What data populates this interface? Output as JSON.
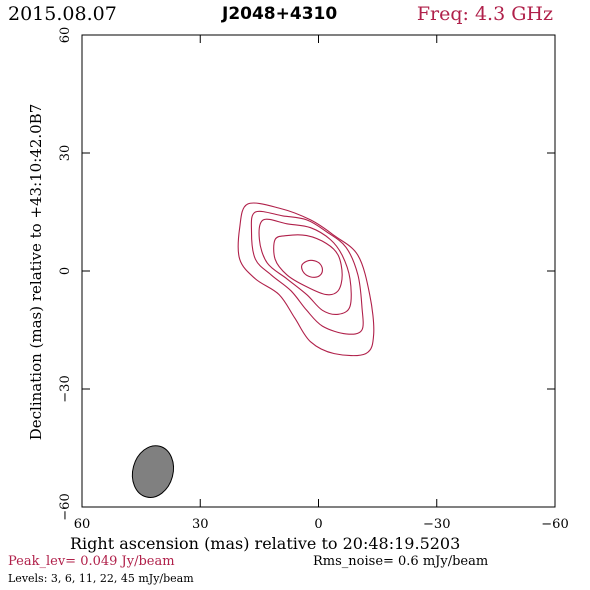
{
  "header": {
    "date": "2015.08.07",
    "source": "J2048+4310",
    "freq_label": "Freq: 4.3 GHz"
  },
  "footer": {
    "peak": "Peak_lev= 0.049 Jy/beam",
    "rms": "Rms_noise= 0.6 mJy/beam",
    "levels": "Levels: 3, 6, 11, 22, 45 mJy/beam"
  },
  "colors": {
    "contour": "#b0204a",
    "beam": "#808080",
    "axes": "#000000"
  },
  "chart_data": {
    "type": "contour",
    "xlabel": "Right ascension (mas) relative to 20:48:19.5203",
    "ylabel": "Declination (mas) relative to +43:10:42.0B7",
    "xlim": [
      60,
      -60
    ],
    "ylim": [
      -60,
      60
    ],
    "xticks": [
      60,
      30,
      0,
      -30,
      -60
    ],
    "yticks": [
      -60,
      -30,
      0,
      30,
      60
    ],
    "xtick_labels": [
      "60",
      "30",
      "0",
      "−30",
      "−60"
    ],
    "ytick_labels": [
      "−60",
      "−30",
      "0",
      "30",
      "60"
    ],
    "levels_mJy": [
      3,
      6,
      11,
      22,
      45
    ],
    "beam": {
      "x": 42,
      "y": -51,
      "major": 13.3,
      "minor": 10.2,
      "pa_deg": 15
    },
    "contours": [
      {
        "level": 3,
        "points": [
          [
            10,
            16
          ],
          [
            18,
            17
          ],
          [
            20,
            11
          ],
          [
            20,
            3
          ],
          [
            16,
            -2
          ],
          [
            10,
            -6
          ],
          [
            6,
            -12
          ],
          [
            2,
            -18
          ],
          [
            -4,
            -21
          ],
          [
            -12,
            -21
          ],
          [
            -14,
            -16
          ],
          [
            -13,
            -6
          ],
          [
            -10,
            4
          ],
          [
            -4,
            9
          ],
          [
            2,
            13
          ]
        ]
      },
      {
        "level": 6,
        "points": [
          [
            9,
            14
          ],
          [
            16,
            15
          ],
          [
            17,
            10
          ],
          [
            16,
            3
          ],
          [
            12,
            -1
          ],
          [
            7,
            -5
          ],
          [
            3,
            -10
          ],
          [
            -1,
            -14
          ],
          [
            -7,
            -16
          ],
          [
            -11,
            -15
          ],
          [
            -11,
            -9
          ],
          [
            -10,
            -1
          ],
          [
            -7,
            6
          ],
          [
            -2,
            10
          ],
          [
            3,
            13
          ]
        ]
      },
      {
        "level": 11,
        "points": [
          [
            8,
            12
          ],
          [
            14,
            13
          ],
          [
            15,
            8
          ],
          [
            13,
            2
          ],
          [
            8,
            -2
          ],
          [
            3,
            -6
          ],
          [
            -1,
            -10
          ],
          [
            -5,
            -11
          ],
          [
            -8,
            -9
          ],
          [
            -8,
            -2
          ],
          [
            -6,
            4
          ],
          [
            -3,
            8
          ],
          [
            2,
            11
          ]
        ]
      },
      {
        "level": 22,
        "points": [
          [
            8,
            9
          ],
          [
            11,
            8
          ],
          [
            11,
            3
          ],
          [
            8,
            -1
          ],
          [
            3,
            -4
          ],
          [
            -2,
            -6
          ],
          [
            -5,
            -5
          ],
          [
            -6,
            -1
          ],
          [
            -5,
            4
          ],
          [
            -2,
            7
          ],
          [
            3,
            9
          ]
        ]
      },
      {
        "level": 45,
        "points": [
          [
            3,
            2.5
          ],
          [
            4.2,
            1.5
          ],
          [
            4,
            0
          ],
          [
            2.8,
            -1.2
          ],
          [
            1,
            -1.6
          ],
          [
            -0.5,
            -1
          ],
          [
            -1,
            0.5
          ],
          [
            -0.2,
            2
          ],
          [
            1.5,
            2.7
          ]
        ]
      }
    ]
  }
}
